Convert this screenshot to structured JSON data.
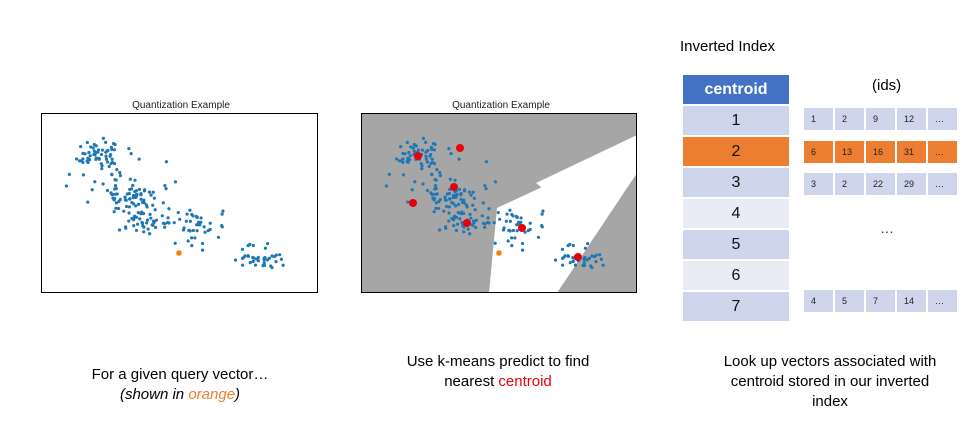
{
  "panel1": {
    "title": "Quantization Example",
    "caption_line1": "For a given query vector…",
    "caption_line2_prefix": "(shown in ",
    "caption_line2_highlight": "orange",
    "caption_line2_suffix": ")"
  },
  "panel2": {
    "title": "Quantization Example",
    "caption_line1": "Use k-means predict to find",
    "caption_line2_prefix": "nearest ",
    "caption_line2_highlight": "centroid"
  },
  "panel3": {
    "title": "Inverted Index",
    "header": "centroid",
    "ids_label": "(ids)",
    "rows": [
      {
        "centroid": "1",
        "ids": [
          "1",
          "2",
          "9",
          "12",
          "…"
        ]
      },
      {
        "centroid": "2",
        "ids": [
          "6",
          "13",
          "16",
          "31",
          "…"
        ]
      },
      {
        "centroid": "3",
        "ids": [
          "3",
          "2",
          "22",
          "29",
          "…"
        ]
      },
      {
        "centroid": "4",
        "ids": []
      },
      {
        "centroid": "5",
        "ids": []
      },
      {
        "centroid": "6",
        "ids": []
      },
      {
        "centroid": "7",
        "ids": [
          "4",
          "5",
          "7",
          "14",
          "…"
        ]
      }
    ],
    "ellipsis": "…",
    "caption_line1": "Look up vectors associated with",
    "caption_line2": "centroid stored in our inverted",
    "caption_line3": "index"
  },
  "colors": {
    "points": "#1f77b4",
    "query": "#ff7f0e",
    "centroid": "#e8000b",
    "highlight": "#ed7d31",
    "header": "#4472c4",
    "row_dark": "#cfd5ea",
    "row_light": "#e9ebf5",
    "region": "#a6a6a6"
  }
}
